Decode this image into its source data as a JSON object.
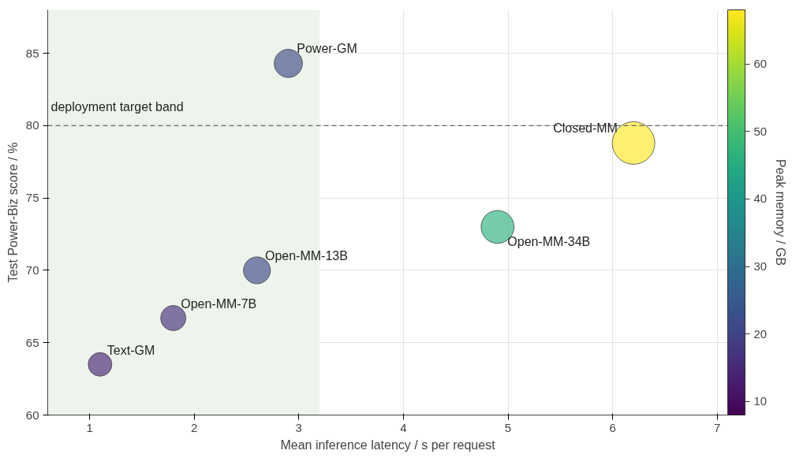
{
  "chart_data": {
    "type": "bubble",
    "xlabel": "Mean inference latency / s per request",
    "ylabel": "Test Power-Biz score / %",
    "clabel": "Peak memory / GB",
    "x": [
      1.1,
      1.8,
      2.6,
      2.9,
      4.9,
      6.2
    ],
    "values": [
      63.5,
      66.7,
      70.0,
      84.3,
      73.0,
      78.8
    ],
    "sizes": [
      0.31,
      0.35,
      0.4,
      0.44,
      0.6,
      1
    ],
    "cvalues": [
      14,
      16,
      21,
      22,
      46,
      68
    ],
    "clim": [
      8,
      68
    ],
    "cticks": [
      10,
      20,
      30,
      40,
      50,
      60
    ],
    "xlim": [
      0.6,
      7.1
    ],
    "ylim": [
      60,
      88
    ],
    "xticks": [
      1,
      2,
      3,
      4,
      5,
      6,
      7
    ],
    "yticks": [
      60,
      65,
      70,
      75,
      80,
      85
    ],
    "grid": true,
    "ref_lines": [
      {
        "axis": "y",
        "value": 80,
        "color": "#666666",
        "line_style": "dashed"
      }
    ],
    "bands": [
      {
        "axis": "x",
        "from": 0.6,
        "to": 3.2,
        "label": "deployment target band",
        "color": "#eef4ec"
      }
    ],
    "annotations": [
      {
        "text": "Text-GM",
        "x": 1.1,
        "y": 63.5
      },
      {
        "text": "Open-MM-7B",
        "x": 1.8,
        "y": 66.7
      },
      {
        "text": "Open-MM-13B",
        "x": 2.6,
        "y": 70.0
      },
      {
        "text": "Power-GM",
        "x": 2.9,
        "y": 84.3
      },
      {
        "text": "Open-MM-34B",
        "x": 4.9,
        "y": 73.0
      },
      {
        "text": "Closed-MM",
        "x": 6.2,
        "y": 78.8
      }
    ]
  }
}
